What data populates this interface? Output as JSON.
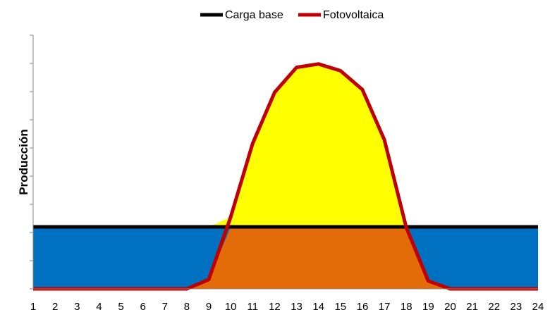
{
  "chart_data": {
    "type": "area",
    "title": "",
    "xlabel": "",
    "ylabel": "Producción",
    "x": [
      1,
      2,
      3,
      4,
      5,
      6,
      7,
      8,
      9,
      10,
      11,
      12,
      13,
      14,
      15,
      16,
      17,
      18,
      19,
      20,
      21,
      22,
      23,
      24
    ],
    "ylim": [
      0,
      9
    ],
    "y_ticks_count": 9,
    "series": [
      {
        "name": "Carga base",
        "color": "#000000",
        "values": [
          2.2,
          2.2,
          2.2,
          2.2,
          2.2,
          2.2,
          2.2,
          2.2,
          2.2,
          2.2,
          2.2,
          2.2,
          2.2,
          2.2,
          2.2,
          2.2,
          2.2,
          2.2,
          2.2,
          2.2,
          2.2,
          2.2,
          2.2,
          2.2
        ]
      },
      {
        "name": "Fotovoltaica",
        "color": "#c00000",
        "values": [
          0,
          0,
          0,
          0,
          0,
          0,
          0,
          0,
          0.33,
          2.55,
          5.16,
          6.97,
          7.86,
          7.98,
          7.74,
          7.07,
          5.29,
          2.17,
          0.28,
          0,
          0,
          0,
          0,
          0
        ]
      }
    ],
    "fills": {
      "base_load_area": "#0070c0",
      "overlap_area": "#e36c09",
      "surplus_area": "#ffff00"
    },
    "legend": {
      "position": "top",
      "entries": [
        "Carga base",
        "Fotovoltaica"
      ]
    }
  }
}
